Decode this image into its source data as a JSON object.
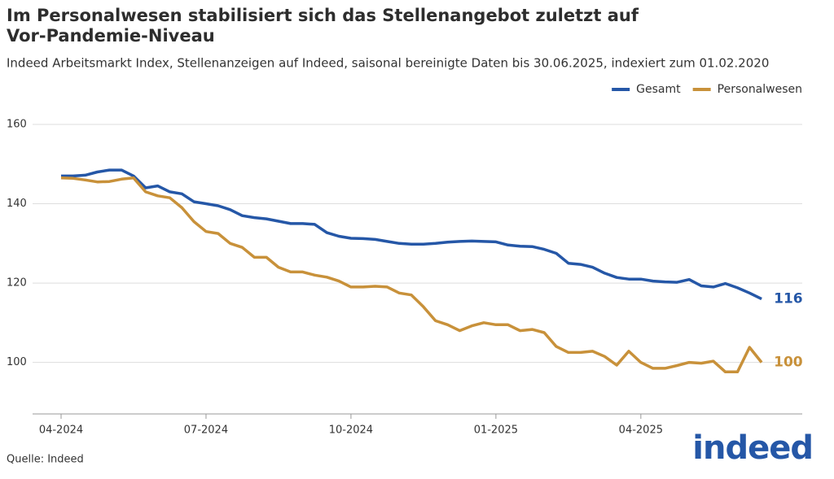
{
  "chart_data": {
    "type": "line",
    "title": "Im Personalwesen stabilisiert sich das Stellenangebot zuletzt auf Vor-Pandemie-Niveau",
    "subtitle": "Indeed Arbeitsmarkt Index, Stellenanzeigen auf Indeed, saisonal bereinigte Daten bis 30.06.2025, indexiert zum 01.02.2020",
    "source": "Quelle: Indeed",
    "logo": "indeed",
    "categories": [
      "04-2024",
      null,
      null,
      null,
      null,
      null,
      null,
      null,
      null,
      null,
      null,
      null,
      "07-2024",
      null,
      null,
      null,
      null,
      null,
      null,
      null,
      null,
      null,
      null,
      null,
      "10-2024",
      null,
      null,
      null,
      null,
      null,
      null,
      null,
      null,
      null,
      null,
      null,
      "01-2025",
      null,
      null,
      null,
      null,
      null,
      null,
      null,
      null,
      null,
      null,
      null,
      "04-2025",
      null,
      null,
      null,
      null,
      null,
      null,
      null,
      null,
      null,
      null
    ],
    "series": [
      {
        "name": "Gesamt",
        "color": "#2557a7",
        "value_label": "116",
        "values": [
          147,
          147,
          147.2,
          148,
          148.5,
          148.5,
          147,
          144,
          144.5,
          143,
          142.5,
          140.5,
          140,
          139.5,
          138.5,
          137,
          136.5,
          136.2,
          135.6,
          135,
          135,
          134.8,
          132.7,
          131.8,
          131.3,
          131.2,
          131,
          130.5,
          130,
          129.8,
          129.8,
          130,
          130.3,
          130.5,
          130.6,
          130.5,
          130.4,
          129.6,
          129.3,
          129.2,
          128.5,
          127.5,
          125,
          124.7,
          124,
          122.5,
          121.4,
          121,
          121,
          120.5,
          120.3,
          120.2,
          120.9,
          119.3,
          119,
          119.9,
          118.8,
          117.5,
          116
        ]
      },
      {
        "name": "Personalwesen",
        "color": "#c8913a",
        "value_label": "100",
        "values": [
          146.5,
          146.4,
          146,
          145.5,
          145.6,
          146.2,
          146.5,
          143,
          142,
          141.5,
          139,
          135.5,
          133,
          132.5,
          130,
          129,
          126.5,
          126.5,
          124,
          122.8,
          122.8,
          122,
          121.5,
          120.5,
          119,
          119,
          119.2,
          119,
          117.5,
          117,
          114,
          110.5,
          109.5,
          108,
          109.2,
          110,
          109.5,
          109.5,
          108,
          108.3,
          107.5,
          104,
          102.5,
          102.5,
          102.8,
          101.5,
          99.3,
          102.8,
          100,
          98.5,
          98.5,
          99.2,
          100,
          99.8,
          100.3,
          97.6,
          97.6,
          103.8,
          100
        ]
      }
    ],
    "ylim": [
      87,
      160
    ],
    "yticks": [
      100,
      120,
      140,
      160
    ],
    "grid": true,
    "legend": "top-right"
  }
}
